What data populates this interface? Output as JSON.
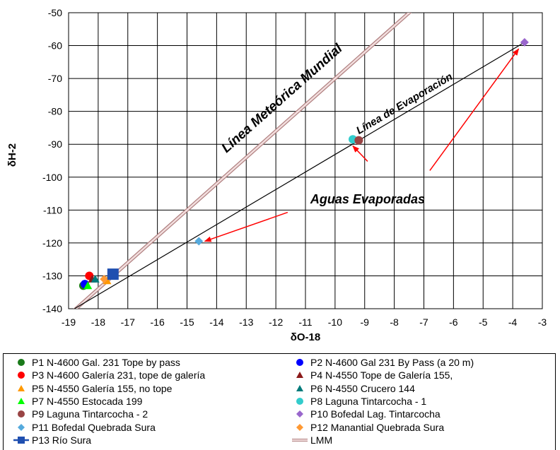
{
  "chart_data": {
    "type": "scatter",
    "xlabel": "δO-18",
    "ylabel": "δH-2",
    "xlim": [
      -19,
      -3
    ],
    "ylim": [
      -140,
      -50
    ],
    "xticks": [
      "-19",
      "-18",
      "-17",
      "-16",
      "-15",
      "-14",
      "-13",
      "-12",
      "-11",
      "-10",
      "-9",
      "-8",
      "-7",
      "-6",
      "-5",
      "-4",
      "-3"
    ],
    "yticks": [
      "-50",
      "-60",
      "-70",
      "-80",
      "-90",
      "-100",
      "-110",
      "-120",
      "-130",
      "-140"
    ],
    "grid": true,
    "series": [
      {
        "name": "P1 N-4600 Gal. 231 Tope by pass",
        "marker": "circle",
        "color": "#1a7a1a",
        "points": [
          [
            -18.5,
            -133.0
          ]
        ]
      },
      {
        "name": "P2 N-4600  Gal 231 By Pass (a 20 m)",
        "marker": "circle",
        "color": "#0000ff",
        "points": [
          [
            -18.45,
            -132.5
          ]
        ]
      },
      {
        "name": "P3 N-4600 Galería 231, tope de galería",
        "marker": "circle",
        "color": "#ff0000",
        "points": [
          [
            -18.3,
            -130.0
          ]
        ]
      },
      {
        "name": "P4 N-4550 Tope de Galería 155,",
        "marker": "triangle",
        "color": "#8b1a1a",
        "points": [
          [
            -18.2,
            -131.0
          ]
        ]
      },
      {
        "name": "P5 N-4550 Galería 155, no tope",
        "marker": "triangle",
        "color": "#ff9900",
        "points": [
          [
            -17.7,
            -131.5
          ]
        ]
      },
      {
        "name": "P6 N-4550 Crucero 144",
        "marker": "triangle",
        "color": "#007a7a",
        "points": [
          [
            -18.1,
            -131.0
          ]
        ]
      },
      {
        "name": "P7 N-4550 Estocada 199",
        "marker": "triangle",
        "color": "#00ff00",
        "points": [
          [
            -18.35,
            -133.0
          ]
        ]
      },
      {
        "name": "P8 Laguna Tintarcocha - 1",
        "marker": "circle",
        "color": "#33cccc",
        "points": [
          [
            -9.4,
            -88.5
          ]
        ]
      },
      {
        "name": "P9 Laguna Tintarcocha - 2",
        "marker": "circle",
        "color": "#994444",
        "points": [
          [
            -9.2,
            -88.8
          ]
        ]
      },
      {
        "name": "P10 Bofedal Lag. Tintarcocha",
        "marker": "diamond",
        "color": "#9966cc",
        "points": [
          [
            -3.6,
            -59.0
          ]
        ]
      },
      {
        "name": "P11 Bofedal Quebrada Sura",
        "marker": "diamond",
        "color": "#55aadd",
        "points": [
          [
            -14.6,
            -119.5
          ]
        ]
      },
      {
        "name": "P12 Manantial Quebrada Sura",
        "marker": "diamond",
        "color": "#ff9933",
        "points": [
          [
            -17.8,
            -131.0
          ]
        ]
      },
      {
        "name": "P13 Río Sura",
        "marker": "square",
        "color": "#1f4fb0",
        "points": [
          [
            -17.5,
            -129.5
          ]
        ]
      },
      {
        "name": "LMM",
        "marker": "line",
        "color": "#d9a6a6",
        "points": [
          [
            -19.0,
            -142.0
          ],
          [
            -9.2,
            -63.6
          ],
          [
            -7.0,
            -46.0
          ]
        ]
      }
    ],
    "evaporation_line": [
      [
        -18.8,
        -140.0
      ],
      [
        -3.6,
        -59.0
      ]
    ],
    "annotations": {
      "lmm_label": "Línea Meteórica Mundial",
      "evap_label": "Línea de Evaporación",
      "evap_waters": "Aguas Evaporadas"
    },
    "arrows": [
      {
        "from": [
          -11.6,
          -110.7
        ],
        "to": [
          -14.4,
          -119.5
        ]
      },
      {
        "from": [
          -8.9,
          -95.2
        ],
        "to": [
          -9.4,
          -90.5
        ]
      },
      {
        "from": [
          -6.8,
          -98.0
        ],
        "to": [
          -3.8,
          -61.0
        ]
      }
    ],
    "legend_position": "bottom"
  }
}
